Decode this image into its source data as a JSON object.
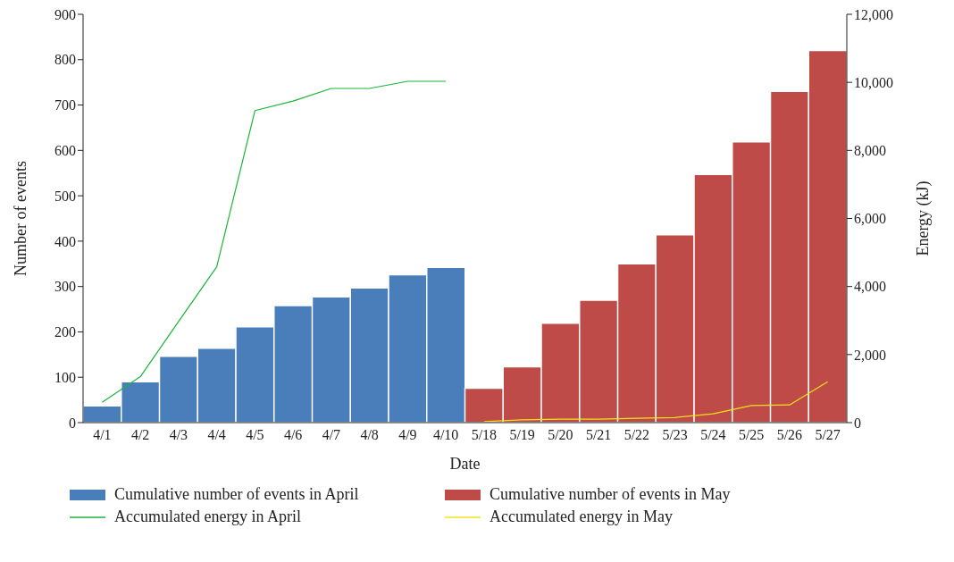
{
  "chart_data": {
    "type": "bar",
    "xlabel": "Date",
    "ylabel": "Number of events",
    "y2label": "Energy (kJ)",
    "categories": [
      "4/1",
      "4/2",
      "4/3",
      "4/4",
      "4/5",
      "4/6",
      "4/7",
      "4/8",
      "4/9",
      "4/10",
      "5/18",
      "5/19",
      "5/20",
      "5/21",
      "5/22",
      "5/23",
      "5/24",
      "5/25",
      "5/26",
      "5/27"
    ],
    "series": [
      {
        "name": "Cumulative number of events in April",
        "color": "#4a7ebb",
        "values": [
          37,
          90,
          146,
          164,
          211,
          258,
          277,
          297,
          326,
          342,
          null,
          null,
          null,
          null,
          null,
          null,
          null,
          null,
          null,
          null
        ]
      },
      {
        "name": "Cumulative number of events in May",
        "color": "#be4b48",
        "values": [
          null,
          null,
          null,
          null,
          null,
          null,
          null,
          null,
          null,
          null,
          76,
          123,
          219,
          270,
          350,
          414,
          547,
          619,
          730,
          820
        ]
      },
      {
        "name": "Accumulated energy in April",
        "type": "line",
        "axis": "y2",
        "color": "#1db33b",
        "values": [
          600,
          1350,
          2970,
          4580,
          9170,
          9450,
          9820,
          9820,
          10030,
          10030,
          null,
          null,
          null,
          null,
          null,
          null,
          null,
          null,
          null,
          null
        ]
      },
      {
        "name": "Accumulated energy in May",
        "type": "line",
        "axis": "y2",
        "color": "#f2e21b",
        "values": [
          null,
          null,
          null,
          null,
          null,
          null,
          null,
          null,
          null,
          null,
          30,
          80,
          100,
          100,
          130,
          150,
          260,
          500,
          520,
          1200
        ]
      }
    ],
    "ylim": [
      0,
      900
    ],
    "yticks": [
      0,
      100,
      200,
      300,
      400,
      500,
      600,
      700,
      800,
      900
    ],
    "y2lim": [
      0,
      12000
    ],
    "y2ticks": [
      0,
      {
        "value": 2000,
        "label": "2,000"
      },
      {
        "value": 4000,
        "label": "4,000"
      },
      {
        "value": 6000,
        "label": "6,000"
      },
      {
        "value": 8000,
        "label": "8,000"
      },
      {
        "value": 10000,
        "label": "10,000"
      },
      {
        "value": 12000,
        "label": "12,000"
      }
    ],
    "grid": false,
    "legend": "bottom",
    "marker": "none"
  }
}
